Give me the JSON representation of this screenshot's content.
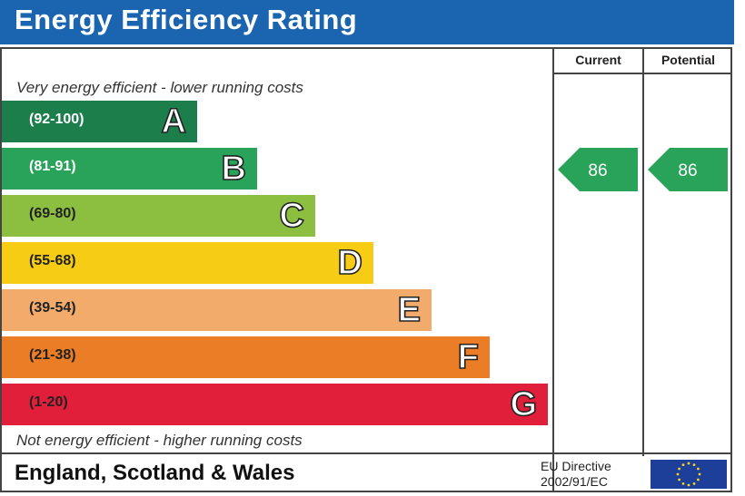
{
  "title": "Energy Efficiency Rating",
  "columns": {
    "current": "Current",
    "potential": "Potential"
  },
  "top_note": "Very energy efficient - lower running costs",
  "bottom_note": "Not energy efficient - higher running costs",
  "footer": {
    "region": "England, Scotland & Wales",
    "directive_line1": "EU Directive",
    "directive_line2": "2002/91/EC"
  },
  "chart_data": {
    "type": "bar",
    "title": "Energy Efficiency Rating",
    "bands": [
      {
        "range": "(92-100)",
        "letter": "A",
        "color": "#1b7e4b"
      },
      {
        "range": "(81-91)",
        "letter": "B",
        "color": "#2aa35a"
      },
      {
        "range": "(69-80)",
        "letter": "C",
        "color": "#8cbf3f"
      },
      {
        "range": "(55-68)",
        "letter": "D",
        "color": "#f6cc14"
      },
      {
        "range": "(39-54)",
        "letter": "E",
        "color": "#f2ab6b"
      },
      {
        "range": "(21-38)",
        "letter": "F",
        "color": "#ea7d25"
      },
      {
        "range": "(1-20)",
        "letter": "G",
        "color": "#e11f3a"
      }
    ],
    "current": {
      "value": 86,
      "band": "B",
      "color": "#2aa35a"
    },
    "potential": {
      "value": 86,
      "band": "B",
      "color": "#2aa35a"
    }
  }
}
